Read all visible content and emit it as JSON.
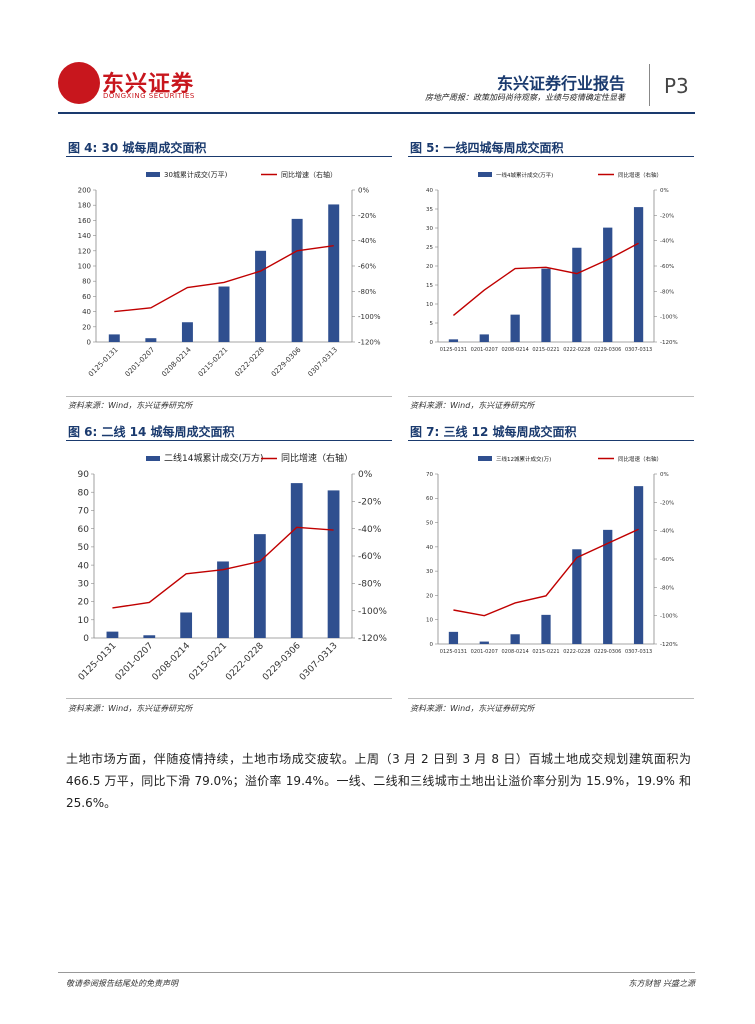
{
  "header": {
    "logo_text": "东兴证券",
    "logo_sub": "DONGXING SECURITIES",
    "report_title": "东兴证券行业报告",
    "report_subtitle": "房地产周报：政策加码尚待观察，业绩与疫情确定性显著",
    "page_number": "P3"
  },
  "figures": [
    {
      "title": "图 4: 30 城每周成交面积",
      "source": "资料来源：Wind，东兴证券研究所",
      "legend_bar": "30城累计成交(万平)",
      "legend_line": "同比增速（右轴）"
    },
    {
      "title": "图 5: 一线四城每周成交面积",
      "source": "资料来源：Wind，东兴证券研究所",
      "legend_bar": "一线4城累计成交(万平)",
      "legend_line": "同比增速（右轴）"
    },
    {
      "title": "图 6: 二线 14 城每周成交面积",
      "source": "资料来源：Wind，东兴证券研究所",
      "legend_bar": "二线14城累计成交(万方)",
      "legend_line": "同比增速（右轴）"
    },
    {
      "title": "图 7: 三线 12 城每周成交面积",
      "source": "资料来源：Wind，东兴证券研究所",
      "legend_bar": "三线12城累计成交(万)",
      "legend_line": "同比增速（右轴）"
    }
  ],
  "chart_data": [
    {
      "type": "bar",
      "title": "图 4: 30 城每周成交面积",
      "categories": [
        "0125-0131",
        "0201-0207",
        "0208-0214",
        "0215-0221",
        "0222-0228",
        "0229-0306",
        "0307-0313"
      ],
      "series": [
        {
          "name": "30城累计成交(万平)",
          "axis": "left",
          "type": "bar",
          "values": [
            10,
            5,
            26,
            73,
            120,
            162,
            181
          ]
        },
        {
          "name": "同比增速（右轴）",
          "axis": "right",
          "type": "line",
          "values": [
            -96,
            -93,
            -77,
            -73,
            -64,
            -48,
            -44
          ]
        }
      ],
      "ylim_left": [
        0,
        200
      ],
      "yticks_left": [
        0,
        20,
        40,
        60,
        80,
        100,
        120,
        140,
        160,
        180,
        200
      ],
      "ylim_right": [
        -120,
        0
      ],
      "yticks_right": [
        "0%",
        "-20%",
        "-40%",
        "-60%",
        "-80%",
        "-100%",
        "-120%"
      ]
    },
    {
      "type": "bar",
      "title": "图 5: 一线四城每周成交面积",
      "categories": [
        "0125-0131",
        "0201-0207",
        "0208-0214",
        "0215-0221",
        "0222-0228",
        "0229-0306",
        "0307-0313"
      ],
      "series": [
        {
          "name": "一线4城累计成交(万平)",
          "axis": "left",
          "type": "bar",
          "values": [
            0.7,
            2,
            7.2,
            19.3,
            24.8,
            30.1,
            35.5
          ]
        },
        {
          "name": "同比增速（右轴）",
          "axis": "right",
          "type": "line",
          "values": [
            -99,
            -79,
            -62,
            -61,
            -66,
            -55,
            -42
          ]
        }
      ],
      "ylim_left": [
        0,
        40
      ],
      "yticks_left": [
        0,
        5,
        10,
        15,
        20,
        25,
        30,
        35,
        40
      ],
      "ylim_right": [
        -120,
        0
      ],
      "yticks_right": [
        "0%",
        "-20%",
        "-40%",
        "-60%",
        "-80%",
        "-100%",
        "-120%"
      ]
    },
    {
      "type": "bar",
      "title": "图 6: 二线 14 城每周成交面积",
      "categories": [
        "0125-0131",
        "0201-0207",
        "0208-0214",
        "0215-0221",
        "0222-0228",
        "0229-0306",
        "0307-0313"
      ],
      "series": [
        {
          "name": "二线14城累计成交(万方)",
          "axis": "left",
          "type": "bar",
          "values": [
            3.5,
            1.5,
            14,
            42,
            57,
            85,
            81
          ]
        },
        {
          "name": "同比增速（右轴）",
          "axis": "right",
          "type": "line",
          "values": [
            -98,
            -94,
            -73,
            -70,
            -64,
            -39,
            -41
          ]
        }
      ],
      "ylim_left": [
        0,
        90
      ],
      "yticks_left": [
        0,
        10,
        20,
        30,
        40,
        50,
        60,
        70,
        80,
        90
      ],
      "ylim_right": [
        -120,
        0
      ],
      "yticks_right": [
        "0%",
        "-20%",
        "-40%",
        "-60%",
        "-80%",
        "-100%",
        "-120%"
      ]
    },
    {
      "type": "bar",
      "title": "图 7: 三线 12 城每周成交面积",
      "categories": [
        "0125-0131",
        "0201-0207",
        "0208-0214",
        "0215-0221",
        "0222-0228",
        "0229-0306",
        "0307-0313"
      ],
      "series": [
        {
          "name": "三线12城累计成交(万)",
          "axis": "left",
          "type": "bar",
          "values": [
            5,
            1,
            4,
            12,
            39,
            47,
            65
          ]
        },
        {
          "name": "同比增速（右轴）",
          "axis": "right",
          "type": "line",
          "values": [
            -96,
            -100,
            -91,
            -86,
            -59,
            -49,
            -39
          ]
        }
      ],
      "ylim_left": [
        0,
        70
      ],
      "yticks_left": [
        0,
        10,
        20,
        30,
        40,
        50,
        60,
        70
      ],
      "ylim_right": [
        -120,
        0
      ],
      "yticks_right": [
        "0%",
        "-20%",
        "-40%",
        "-60%",
        "-80%",
        "-100%",
        "-120%"
      ]
    }
  ],
  "body": {
    "paragraph": "土地市场方面，伴随疫情持续，土地市场成交疲软。上周（3 月 2 日到 3 月 8 日）百城土地成交规划建筑面积为 466.5 万平，同比下滑 79.0%；溢价率 19.4%。一线、二线和三线城市土地出让溢价率分别为 15.9%，19.9% 和 25.6%。"
  },
  "footer": {
    "left": "敬请参阅报告结尾处的免责声明",
    "right": "东方财智 兴盛之源"
  },
  "colors": {
    "bar": "#2f4f8f",
    "line": "#c00000",
    "brand": "#c8161d",
    "title": "#1a3a6e"
  }
}
